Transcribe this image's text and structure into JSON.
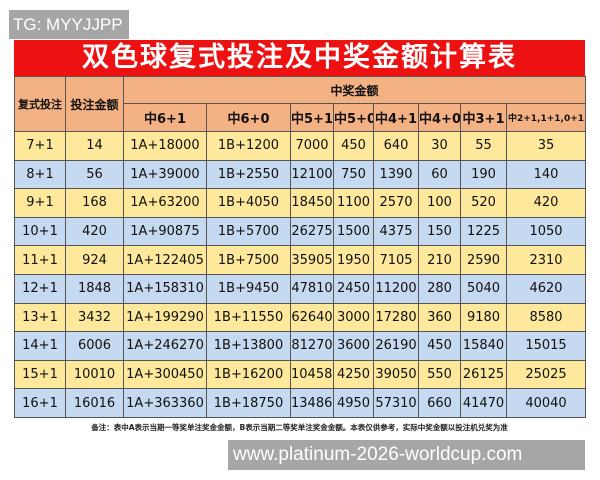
{
  "watermark_top": "TG: MYYJJPP",
  "title": "双色球复式投注及中奖金额计算表",
  "headers": {
    "col1": "复式投注",
    "col2": "投注金额",
    "group": "中奖金额",
    "prizes": [
      "中6+1",
      "中6+0",
      "中5+1",
      "中5+0",
      "中4+1",
      "中4+0",
      "中3+1",
      "中2+1,1+1,0+1"
    ]
  },
  "rows": [
    [
      "7+1",
      "14",
      "1A+18000",
      "1B+1200",
      "7000",
      "450",
      "640",
      "30",
      "55",
      "35"
    ],
    [
      "8+1",
      "56",
      "1A+39000",
      "1B+2550",
      "12100",
      "750",
      "1390",
      "60",
      "190",
      "140"
    ],
    [
      "9+1",
      "168",
      "1A+63200",
      "1B+4050",
      "18450",
      "1100",
      "2570",
      "100",
      "520",
      "420"
    ],
    [
      "10+1",
      "420",
      "1A+90875",
      "1B+5700",
      "26275",
      "1500",
      "4375",
      "150",
      "1225",
      "1050"
    ],
    [
      "11+1",
      "924",
      "1A+122405",
      "1B+7500",
      "35905",
      "1950",
      "7105",
      "210",
      "2590",
      "2310"
    ],
    [
      "12+1",
      "1848",
      "1A+158310",
      "1B+9450",
      "47810",
      "2450",
      "11200",
      "280",
      "5040",
      "4620"
    ],
    [
      "13+1",
      "3432",
      "1A+199290",
      "1B+11550",
      "62640",
      "3000",
      "17280",
      "360",
      "9180",
      "8580"
    ],
    [
      "14+1",
      "6006",
      "1A+246270",
      "1B+13800",
      "81270",
      "3600",
      "26190",
      "450",
      "15840",
      "15015"
    ],
    [
      "15+1",
      "10010",
      "1A+300450",
      "1B+16200",
      "104580",
      "4250",
      "39050",
      "550",
      "26125",
      "25025"
    ],
    [
      "16+1",
      "16016",
      "1A+363360",
      "1B+18750",
      "134860",
      "4950",
      "57310",
      "660",
      "41470",
      "40040"
    ]
  ],
  "note": "备注：表中A表示当期一等奖单注奖金金额，B表示当期二等奖单注奖金金额。本表仅供参考，实际中奖金额以投注机兑奖为准",
  "watermark_bottom": "www.platinum-2026-worldcup.com",
  "colors": {
    "title_bg": "#ee1111",
    "header_bg": "#f4b183",
    "row_yellow": "#fde89c",
    "row_blue": "#c5d9f0"
  }
}
